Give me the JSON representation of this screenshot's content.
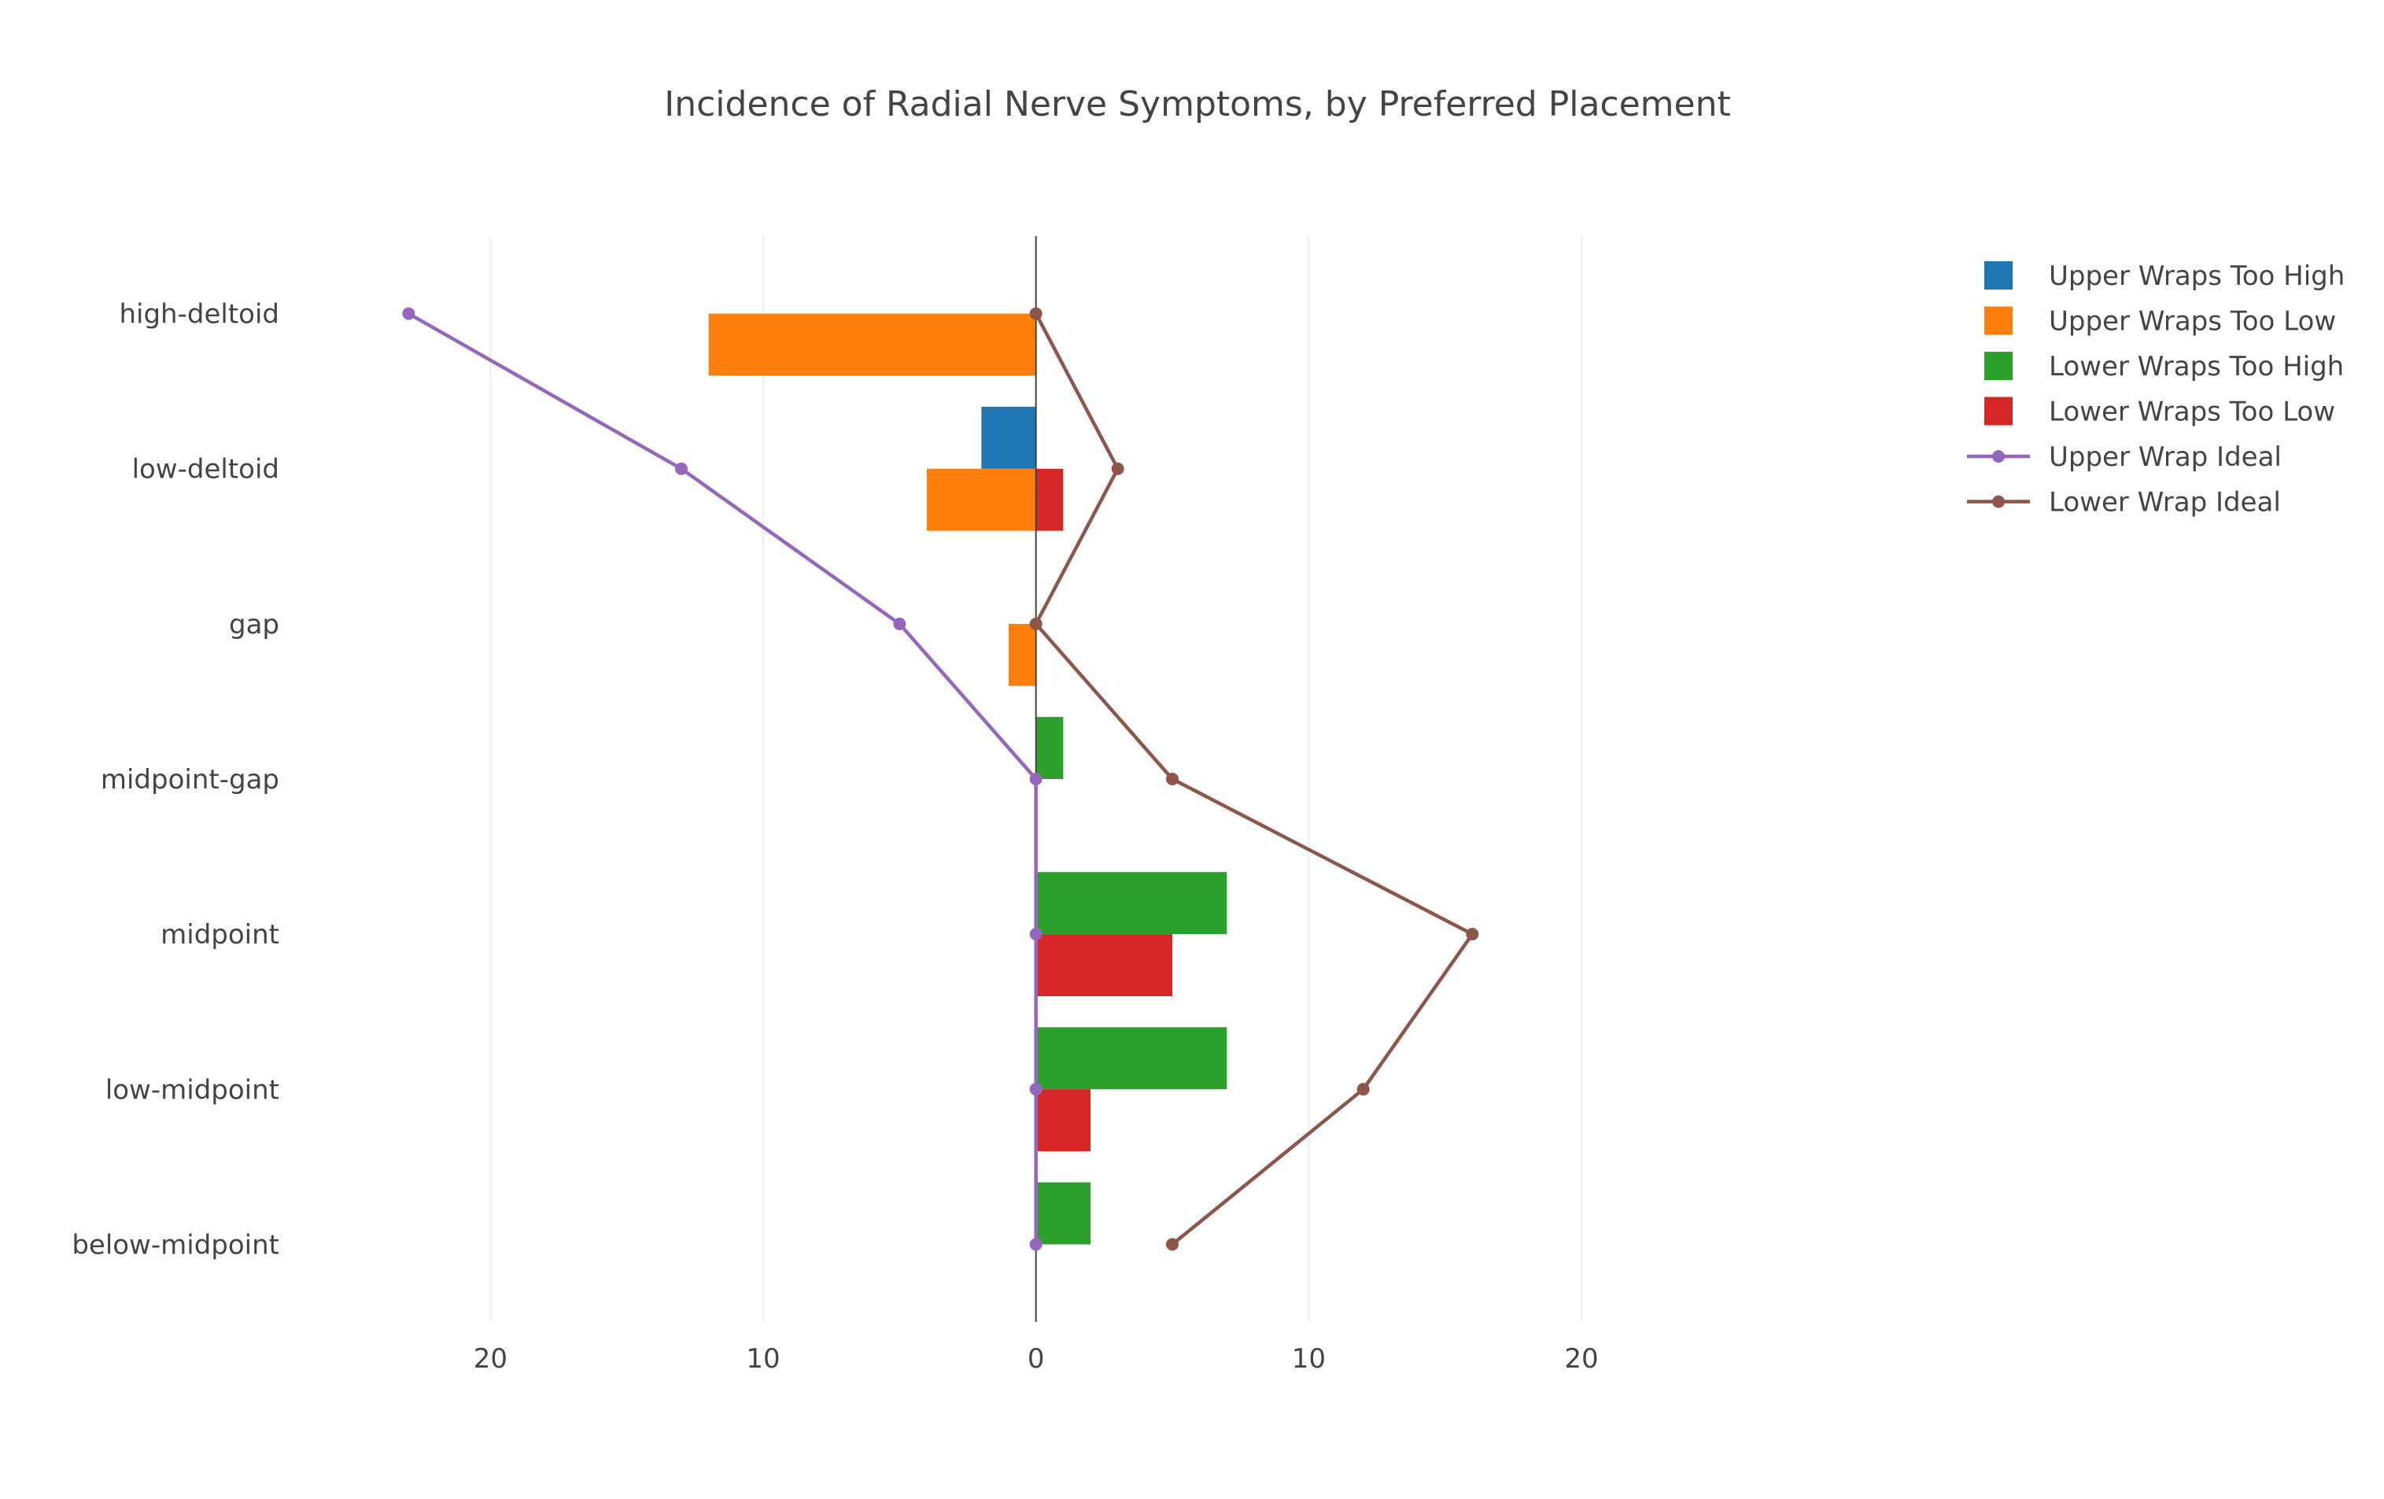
{
  "chart_data": {
    "type": "bar",
    "orientation": "horizontal",
    "title": "Incidence of Radial Nerve Symptoms, by Preferred Placement",
    "xlabel": "",
    "ylabel": "",
    "categories": [
      "high-deltoid",
      "low-deltoid",
      "gap",
      "midpoint-gap",
      "midpoint",
      "low-midpoint",
      "below-midpoint"
    ],
    "xlim": [
      -26.5,
      27.5
    ],
    "x_ticks": [
      -20,
      -10,
      0,
      10,
      20
    ],
    "x_tick_labels": [
      "20",
      "10",
      "0",
      "10",
      "20"
    ],
    "grid": true,
    "legend_position": "top-right",
    "series": [
      {
        "name": "Upper Wraps Too High",
        "kind": "bar",
        "slot": "upper",
        "color": "#1f77b4",
        "values": [
          0,
          -2,
          0,
          0,
          0,
          0,
          0
        ]
      },
      {
        "name": "Upper Wraps Too Low",
        "kind": "bar",
        "slot": "lower",
        "color": "#ff7f0e",
        "values": [
          -12,
          -4,
          -1,
          0,
          0,
          0,
          0
        ]
      },
      {
        "name": "Lower Wraps Too High",
        "kind": "bar",
        "slot": "upper",
        "color": "#2ca02c",
        "values": [
          0,
          0,
          0,
          1,
          7,
          7,
          2
        ]
      },
      {
        "name": "Lower Wraps Too Low",
        "kind": "bar",
        "slot": "lower",
        "color": "#d62728",
        "values": [
          0,
          1,
          0,
          0,
          5,
          2,
          0
        ]
      },
      {
        "name": "Upper Wrap Ideal",
        "kind": "line",
        "color": "#9467bd",
        "values": [
          -23,
          -13,
          -5,
          0,
          0,
          0,
          0
        ]
      },
      {
        "name": "Lower Wrap Ideal",
        "kind": "line",
        "color": "#8c564b",
        "values": [
          0,
          3,
          0,
          5,
          16,
          12,
          5
        ]
      }
    ]
  }
}
